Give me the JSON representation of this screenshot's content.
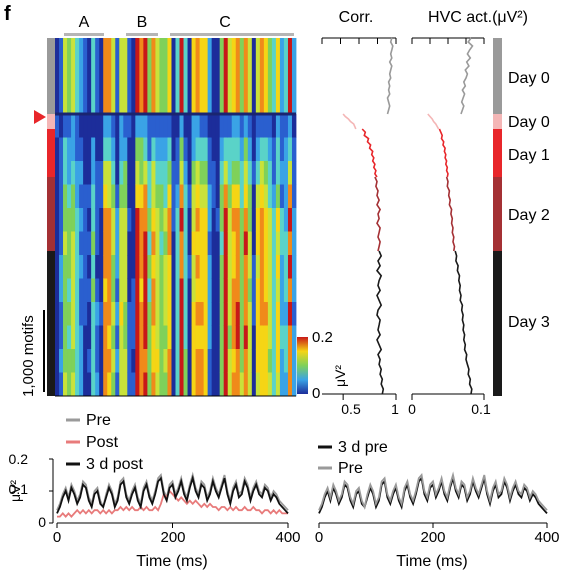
{
  "panel_letter": "f",
  "colors": {
    "pre_gray": "#9a9a9a",
    "post_pink": "#e87b7b",
    "day0_pink": "#f4b6b6",
    "day1_red": "#e8262a",
    "day2_darkred": "#a43034",
    "day3_black": "#1a1a1a"
  },
  "heatmap": {
    "segment_labels": [
      "A",
      "B",
      "C"
    ],
    "colorbar": {
      "max_label": "0.2",
      "min_label": "0",
      "unit": "μV²"
    },
    "scale_bar_label": "1,000 motifs",
    "marker": "red-triangle"
  },
  "chart_data": [
    {
      "type": "line",
      "title": "Corr.",
      "xlim": [
        0.3,
        1.0
      ],
      "x_ticks": [
        "0.5",
        "1"
      ],
      "series": [
        {
          "segment": "Day 0 (pre)",
          "color": "#9a9a9a",
          "values": [
            0.96,
            0.95,
            0.97,
            0.96,
            0.95,
            0.96,
            0.94,
            0.96,
            0.95,
            0.94,
            0.95,
            0.93,
            0.94,
            0.93,
            0.94,
            0.92,
            0.93,
            0.94,
            0.93,
            0.92
          ]
        },
        {
          "segment": "Day 0 (post)",
          "color": "#f4b6b6",
          "values": [
            0.5,
            0.52,
            0.55,
            0.57,
            0.6,
            0.61,
            0.62
          ]
        },
        {
          "segment": "Day 1",
          "color": "#e8262a",
          "values": [
            0.68,
            0.71,
            0.7,
            0.74,
            0.73,
            0.76,
            0.75,
            0.78,
            0.77,
            0.79,
            0.78,
            0.8,
            0.79,
            0.81,
            0.8,
            0.82
          ]
        },
        {
          "segment": "Day 2",
          "color": "#a43034",
          "values": [
            0.8,
            0.82,
            0.81,
            0.83,
            0.82,
            0.84,
            0.82,
            0.85,
            0.83,
            0.84,
            0.82,
            0.85,
            0.84,
            0.83,
            0.85,
            0.84,
            0.83
          ]
        },
        {
          "segment": "Day 3",
          "color": "#1a1a1a",
          "values": [
            0.84,
            0.86,
            0.83,
            0.85,
            0.82,
            0.86,
            0.84,
            0.83,
            0.85,
            0.82,
            0.84,
            0.86,
            0.83,
            0.82,
            0.85,
            0.84,
            0.83,
            0.85,
            0.82,
            0.84,
            0.86,
            0.83,
            0.85,
            0.84,
            0.86,
            0.85,
            0.87,
            0.86,
            0.88,
            0.87
          ]
        }
      ]
    },
    {
      "type": "line",
      "title": "HVC act.(μV²)",
      "xlim": [
        0,
        0.1
      ],
      "x_ticks": [
        "0",
        "0.1"
      ],
      "series": [
        {
          "segment": "Day 0 (pre)",
          "color": "#9a9a9a",
          "values": [
            0.082,
            0.078,
            0.084,
            0.08,
            0.077,
            0.081,
            0.076,
            0.079,
            0.074,
            0.077,
            0.075,
            0.072,
            0.074,
            0.07,
            0.073,
            0.071,
            0.069,
            0.072,
            0.07,
            0.068
          ]
        },
        {
          "segment": "Day 0 (post)",
          "color": "#f4b6b6",
          "values": [
            0.022,
            0.025,
            0.028,
            0.03,
            0.033,
            0.035,
            0.037
          ]
        },
        {
          "segment": "Day 1",
          "color": "#e8262a",
          "values": [
            0.038,
            0.04,
            0.042,
            0.041,
            0.044,
            0.043,
            0.046,
            0.045,
            0.047,
            0.046,
            0.048,
            0.047,
            0.049,
            0.048,
            0.05,
            0.049
          ]
        },
        {
          "segment": "Day 2",
          "color": "#a43034",
          "values": [
            0.048,
            0.05,
            0.049,
            0.052,
            0.051,
            0.053,
            0.052,
            0.055,
            0.054,
            0.056,
            0.055,
            0.057,
            0.056,
            0.058,
            0.057,
            0.059,
            0.058
          ]
        },
        {
          "segment": "Day 3",
          "color": "#1a1a1a",
          "values": [
            0.06,
            0.062,
            0.061,
            0.064,
            0.063,
            0.066,
            0.065,
            0.067,
            0.066,
            0.068,
            0.067,
            0.07,
            0.069,
            0.071,
            0.07,
            0.072,
            0.071,
            0.073,
            0.072,
            0.074,
            0.073,
            0.076,
            0.075,
            0.077,
            0.079,
            0.078,
            0.081,
            0.08,
            0.083,
            0.082
          ]
        }
      ]
    },
    {
      "type": "line",
      "xlabel": "Time (ms)",
      "ylabel": "μV²",
      "xlim": [
        0,
        400
      ],
      "ylim": [
        0,
        0.2
      ],
      "x_ticks": [
        "0",
        "200",
        "400"
      ],
      "y_ticks": [
        "0",
        "0.1",
        "0.2"
      ],
      "legend": "top-left",
      "series": [
        {
          "name": "Pre",
          "color": "#9a9a9a",
          "x_step": 5,
          "values": [
            0.04,
            0.06,
            0.09,
            0.11,
            0.08,
            0.12,
            0.1,
            0.07,
            0.09,
            0.13,
            0.12,
            0.08,
            0.06,
            0.1,
            0.11,
            0.07,
            0.05,
            0.09,
            0.12,
            0.1,
            0.06,
            0.08,
            0.13,
            0.14,
            0.09,
            0.07,
            0.1,
            0.12,
            0.08,
            0.06,
            0.11,
            0.13,
            0.09,
            0.07,
            0.1,
            0.14,
            0.15,
            0.1,
            0.08,
            0.12,
            0.13,
            0.09,
            0.11,
            0.14,
            0.1,
            0.08,
            0.12,
            0.15,
            0.11,
            0.09,
            0.13,
            0.12,
            0.08,
            0.1,
            0.14,
            0.11,
            0.09,
            0.12,
            0.15,
            0.1,
            0.07,
            0.11,
            0.13,
            0.09,
            0.1,
            0.14,
            0.12,
            0.08,
            0.11,
            0.13,
            0.1,
            0.09,
            0.12,
            0.11,
            0.08,
            0.1,
            0.09,
            0.07,
            0.06,
            0.05,
            0.04
          ]
        },
        {
          "name": "Post",
          "color": "#e87b7b",
          "x_step": 5,
          "values": [
            0.02,
            0.02,
            0.03,
            0.02,
            0.03,
            0.02,
            0.03,
            0.04,
            0.03,
            0.04,
            0.03,
            0.04,
            0.03,
            0.04,
            0.04,
            0.03,
            0.04,
            0.03,
            0.04,
            0.03,
            0.04,
            0.04,
            0.05,
            0.04,
            0.05,
            0.04,
            0.05,
            0.04,
            0.04,
            0.05,
            0.04,
            0.05,
            0.04,
            0.04,
            0.05,
            0.04,
            0.06,
            0.09,
            0.08,
            0.1,
            0.09,
            0.08,
            0.07,
            0.08,
            0.07,
            0.06,
            0.07,
            0.06,
            0.07,
            0.06,
            0.05,
            0.06,
            0.05,
            0.06,
            0.05,
            0.05,
            0.04,
            0.05,
            0.05,
            0.04,
            0.05,
            0.04,
            0.05,
            0.04,
            0.04,
            0.05,
            0.04,
            0.04,
            0.05,
            0.04,
            0.04,
            0.03,
            0.04,
            0.04,
            0.03,
            0.04,
            0.03,
            0.04,
            0.03,
            0.03,
            0.03
          ]
        },
        {
          "name": "3 d post",
          "color": "#111111",
          "x_step": 5,
          "values": [
            0.03,
            0.05,
            0.08,
            0.1,
            0.07,
            0.11,
            0.09,
            0.06,
            0.08,
            0.12,
            0.11,
            0.07,
            0.05,
            0.09,
            0.1,
            0.06,
            0.05,
            0.08,
            0.11,
            0.09,
            0.05,
            0.07,
            0.12,
            0.13,
            0.08,
            0.06,
            0.09,
            0.11,
            0.07,
            0.05,
            0.1,
            0.12,
            0.08,
            0.06,
            0.09,
            0.13,
            0.14,
            0.09,
            0.07,
            0.11,
            0.12,
            0.08,
            0.1,
            0.13,
            0.09,
            0.07,
            0.11,
            0.14,
            0.1,
            0.08,
            0.12,
            0.11,
            0.07,
            0.09,
            0.13,
            0.1,
            0.08,
            0.11,
            0.14,
            0.09,
            0.06,
            0.1,
            0.12,
            0.08,
            0.09,
            0.13,
            0.11,
            0.07,
            0.1,
            0.12,
            0.09,
            0.08,
            0.11,
            0.1,
            0.07,
            0.09,
            0.08,
            0.06,
            0.05,
            0.04,
            0.03
          ]
        }
      ]
    },
    {
      "type": "line",
      "xlabel": "Time (ms)",
      "xlim": [
        0,
        400
      ],
      "ylim": [
        0,
        0.2
      ],
      "x_ticks": [
        "0",
        "200",
        "400"
      ],
      "legend": "top-left",
      "series": [
        {
          "name": "3 d pre",
          "color": "#111111",
          "x_step": 5,
          "values": [
            0.03,
            0.05,
            0.08,
            0.1,
            0.07,
            0.11,
            0.09,
            0.06,
            0.08,
            0.12,
            0.11,
            0.07,
            0.05,
            0.09,
            0.1,
            0.06,
            0.05,
            0.08,
            0.11,
            0.09,
            0.05,
            0.07,
            0.12,
            0.13,
            0.08,
            0.06,
            0.09,
            0.11,
            0.07,
            0.05,
            0.1,
            0.12,
            0.08,
            0.06,
            0.09,
            0.13,
            0.14,
            0.09,
            0.07,
            0.11,
            0.12,
            0.08,
            0.1,
            0.13,
            0.09,
            0.07,
            0.11,
            0.14,
            0.1,
            0.08,
            0.12,
            0.11,
            0.07,
            0.09,
            0.13,
            0.1,
            0.08,
            0.11,
            0.14,
            0.09,
            0.06,
            0.1,
            0.12,
            0.08,
            0.09,
            0.13,
            0.11,
            0.07,
            0.1,
            0.12,
            0.09,
            0.08,
            0.11,
            0.1,
            0.07,
            0.09,
            0.08,
            0.06,
            0.05,
            0.04,
            0.03
          ]
        },
        {
          "name": "Pre",
          "color": "#9a9a9a",
          "x_step": 5,
          "values": [
            0.04,
            0.06,
            0.09,
            0.11,
            0.08,
            0.12,
            0.1,
            0.07,
            0.09,
            0.13,
            0.12,
            0.08,
            0.06,
            0.1,
            0.11,
            0.07,
            0.05,
            0.09,
            0.12,
            0.1,
            0.06,
            0.08,
            0.13,
            0.14,
            0.09,
            0.07,
            0.1,
            0.12,
            0.08,
            0.06,
            0.11,
            0.13,
            0.09,
            0.07,
            0.1,
            0.14,
            0.15,
            0.1,
            0.08,
            0.12,
            0.13,
            0.09,
            0.11,
            0.14,
            0.1,
            0.08,
            0.12,
            0.15,
            0.11,
            0.09,
            0.13,
            0.12,
            0.08,
            0.1,
            0.14,
            0.11,
            0.09,
            0.12,
            0.15,
            0.1,
            0.07,
            0.11,
            0.13,
            0.09,
            0.1,
            0.14,
            0.12,
            0.08,
            0.11,
            0.13,
            0.1,
            0.09,
            0.12,
            0.11,
            0.08,
            0.1,
            0.09,
            0.07,
            0.06,
            0.05,
            0.04
          ]
        }
      ]
    }
  ],
  "day_bar": [
    {
      "label": "Day 0",
      "color": "#9a9a9a"
    },
    {
      "label": "Day 0",
      "color": "#f4b6b6"
    },
    {
      "label": "Day 1",
      "color": "#e8262a"
    },
    {
      "label": "Day 2",
      "color": "#a43034"
    },
    {
      "label": "Day 3",
      "color": "#1a1a1a"
    }
  ]
}
